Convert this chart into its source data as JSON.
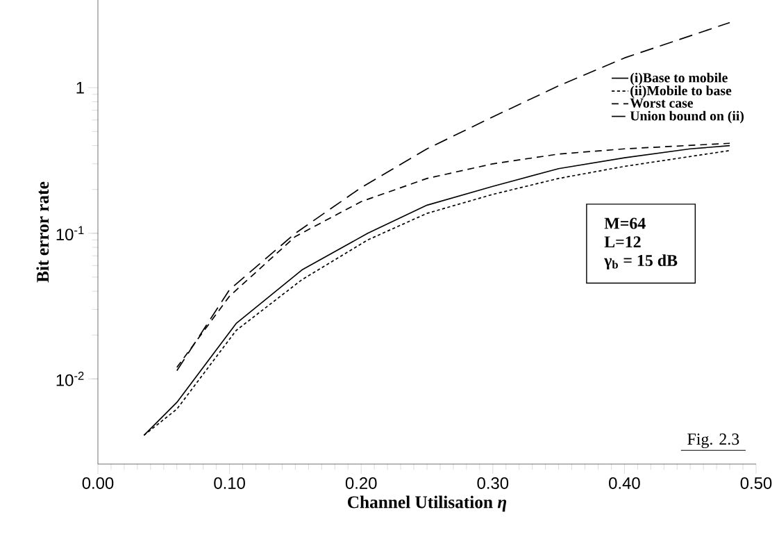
{
  "chart_data": {
    "type": "line",
    "xlabel": "Channel Utilisation  *η*",
    "ylabel": "Bit error rate",
    "xlim": [
      0,
      0.5
    ],
    "ylim": [
      0.0026,
      4
    ],
    "log": "y",
    "legend": "right",
    "grid": false,
    "xticks": [
      {
        "value": 0,
        "label": "0.00"
      },
      {
        "value": 0.1,
        "label": "0.10"
      },
      {
        "value": 0.2,
        "label": "0.20"
      },
      {
        "value": 0.3,
        "label": "0.30"
      },
      {
        "value": 0.4,
        "label": "0.40"
      },
      {
        "value": 0.5,
        "label": "0.50"
      }
    ],
    "yticks": [
      {
        "value": 0.01,
        "label": "10$^{-2}$"
      },
      {
        "value": 0.1,
        "label": "10$^{-1}$"
      },
      1
    ],
    "annotations": [
      "M=64",
      "L=12",
      "γ$_{b}$ = 15 dB",
      "Fig. 2.3"
    ],
    "series": [
      {
        "name": "(i)Base to mobile",
        "color": "#000000",
        "line_style": "solid",
        "x": [
          0.035,
          0.06,
          0.105,
          0.155,
          0.205,
          0.25,
          0.3,
          0.35,
          0.4,
          0.45,
          0.48
        ],
        "values": [
          0.0041,
          0.0069,
          0.024,
          0.056,
          0.1,
          0.156,
          0.21,
          0.278,
          0.33,
          0.38,
          0.4
        ]
      },
      {
        "name": "(ii)Mobile to base",
        "color": "#000000",
        "line_style": "dotted",
        "x": [
          0.035,
          0.06,
          0.105,
          0.155,
          0.205,
          0.25,
          0.3,
          0.35,
          0.4,
          0.48
        ],
        "values": [
          0.0041,
          0.0062,
          0.0215,
          0.048,
          0.09,
          0.137,
          0.185,
          0.238,
          0.288,
          0.37
        ]
      },
      {
        "name": "Worst case",
        "color": "#000000",
        "line_style": "dashed",
        "x": [
          0.06,
          0.1,
          0.15,
          0.2,
          0.25,
          0.3,
          0.35,
          0.4,
          0.48
        ],
        "values": [
          0.012,
          0.037,
          0.095,
          0.165,
          0.238,
          0.3,
          0.35,
          0.38,
          0.415
        ]
      },
      {
        "name": "Union bound on (ii)",
        "color": "#000000",
        "line_style": "long dashed",
        "x": [
          0.06,
          0.1,
          0.15,
          0.2,
          0.25,
          0.3,
          0.35,
          0.4,
          0.48
        ],
        "values": [
          0.0114,
          0.041,
          0.1,
          0.206,
          0.38,
          0.63,
          1.03,
          1.6,
          2.8
        ]
      }
    ]
  }
}
